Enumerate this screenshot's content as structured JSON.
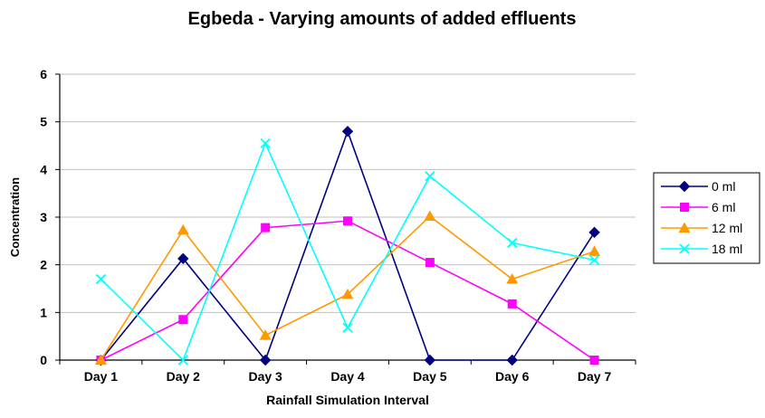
{
  "chart_data": {
    "type": "line",
    "title": "Egbeda - Varying amounts of added effluents",
    "xlabel": "Rainfall Simulation Interval",
    "ylabel": "Concentration",
    "categories": [
      "Day 1",
      "Day 2",
      "Day 3",
      "Day 4",
      "Day 5",
      "Day 6",
      "Day 7"
    ],
    "ylim": [
      0,
      6
    ],
    "yticks": [
      0,
      1,
      2,
      3,
      4,
      5,
      6
    ],
    "grid": true,
    "legend_position": "right",
    "series": [
      {
        "name": "0 ml",
        "color": "#000080",
        "marker": "diamond",
        "values": [
          0,
          2.13,
          0,
          4.8,
          0,
          0,
          2.68
        ]
      },
      {
        "name": "6 ml",
        "color": "#FF00FF",
        "marker": "square",
        "values": [
          0,
          0.85,
          2.78,
          2.92,
          2.05,
          1.18,
          0
        ]
      },
      {
        "name": "12 ml",
        "color": "#FF9900",
        "marker": "triangle",
        "values": [
          0,
          2.73,
          0.52,
          1.38,
          3.02,
          1.7,
          2.28
        ]
      },
      {
        "name": "18 ml",
        "color": "#00FFFF",
        "marker": "x",
        "values": [
          1.7,
          0,
          4.55,
          0.68,
          3.86,
          2.46,
          2.1
        ]
      }
    ]
  }
}
